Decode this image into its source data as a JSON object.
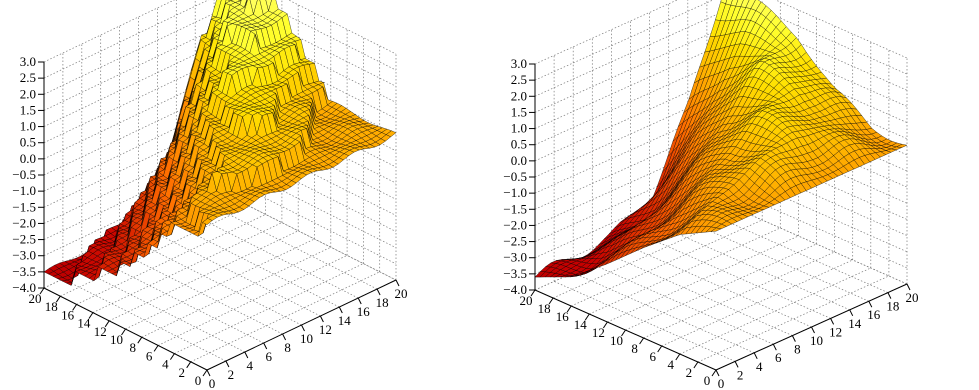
{
  "chart_data": [
    {
      "type": "surface3d",
      "title": "",
      "surface_style": "stepped, discontinuous",
      "colormap": "hot",
      "grid": true,
      "xlim": [
        0,
        20
      ],
      "ylim": [
        0,
        20
      ],
      "zlim": [
        -4.0,
        3.0
      ],
      "x_ticks": [
        "0",
        "2",
        "4",
        "6",
        "8",
        "10",
        "12",
        "14",
        "16",
        "18",
        "20"
      ],
      "y_ticks": [
        "0",
        "2",
        "4",
        "6",
        "8",
        "10",
        "12",
        "14",
        "16",
        "18",
        "20"
      ],
      "z_ticks": [
        "-4.0",
        "-3.5",
        "-3.0",
        "-2.5",
        "-2.0",
        "-1.5",
        "-1.0",
        "-0.5",
        "0.0",
        "0.5",
        "1.0",
        "1.5",
        "2.0",
        "2.5",
        "3.0"
      ],
      "x_samples": [
        0,
        4,
        8,
        12,
        16,
        20
      ],
      "y_samples": [
        0,
        4,
        8,
        12,
        16,
        20
      ],
      "z": [
        [
          0.3,
          0.3,
          0.3,
          0.3,
          0.3,
          0.3
        ],
        [
          0.0,
          0.8,
          1.2,
          1.0,
          0.5,
          0.3
        ],
        [
          -1.5,
          -0.5,
          1.0,
          1.6,
          1.0,
          0.6
        ],
        [
          -2.5,
          -1.8,
          0.0,
          1.8,
          2.2,
          2.0
        ],
        [
          -3.2,
          -2.8,
          -1.5,
          0.5,
          2.5,
          3.0
        ],
        [
          -3.6,
          -3.5,
          -3.3,
          -2.5,
          1.0,
          3.2
        ]
      ]
    },
    {
      "type": "surface3d",
      "title": "",
      "surface_style": "smooth",
      "colormap": "hot",
      "grid": true,
      "xlim": [
        0,
        20
      ],
      "ylim": [
        0,
        20
      ],
      "zlim": [
        -4.0,
        3.0
      ],
      "x_ticks": [
        "0",
        "2",
        "4",
        "6",
        "8",
        "10",
        "12",
        "14",
        "16",
        "18",
        "20"
      ],
      "y_ticks": [
        "0",
        "2",
        "4",
        "6",
        "8",
        "10",
        "12",
        "14",
        "16",
        "18",
        "20"
      ],
      "z_ticks": [
        "-4.0",
        "-3.5",
        "-3.0",
        "-2.5",
        "-2.0",
        "-1.5",
        "-1.0",
        "-0.5",
        "0.0",
        "0.5",
        "1.0",
        "1.5",
        "2.0",
        "2.5",
        "3.0"
      ],
      "x_samples": [
        0,
        4,
        8,
        12,
        16,
        20
      ],
      "y_samples": [
        0,
        4,
        8,
        12,
        16,
        20
      ],
      "z": [
        [
          0.3,
          0.3,
          0.3,
          0.3,
          0.3,
          0.3
        ],
        [
          -0.3,
          0.4,
          0.9,
          1.2,
          0.8,
          0.4
        ],
        [
          -1.2,
          -0.6,
          0.5,
          1.3,
          1.6,
          1.0
        ],
        [
          -2.2,
          -1.8,
          -0.8,
          0.6,
          1.8,
          2.2
        ],
        [
          -3.1,
          -2.9,
          -2.3,
          -1.0,
          1.0,
          2.6
        ],
        [
          -3.6,
          -3.5,
          -3.4,
          -2.8,
          -0.5,
          3.0
        ]
      ]
    }
  ]
}
